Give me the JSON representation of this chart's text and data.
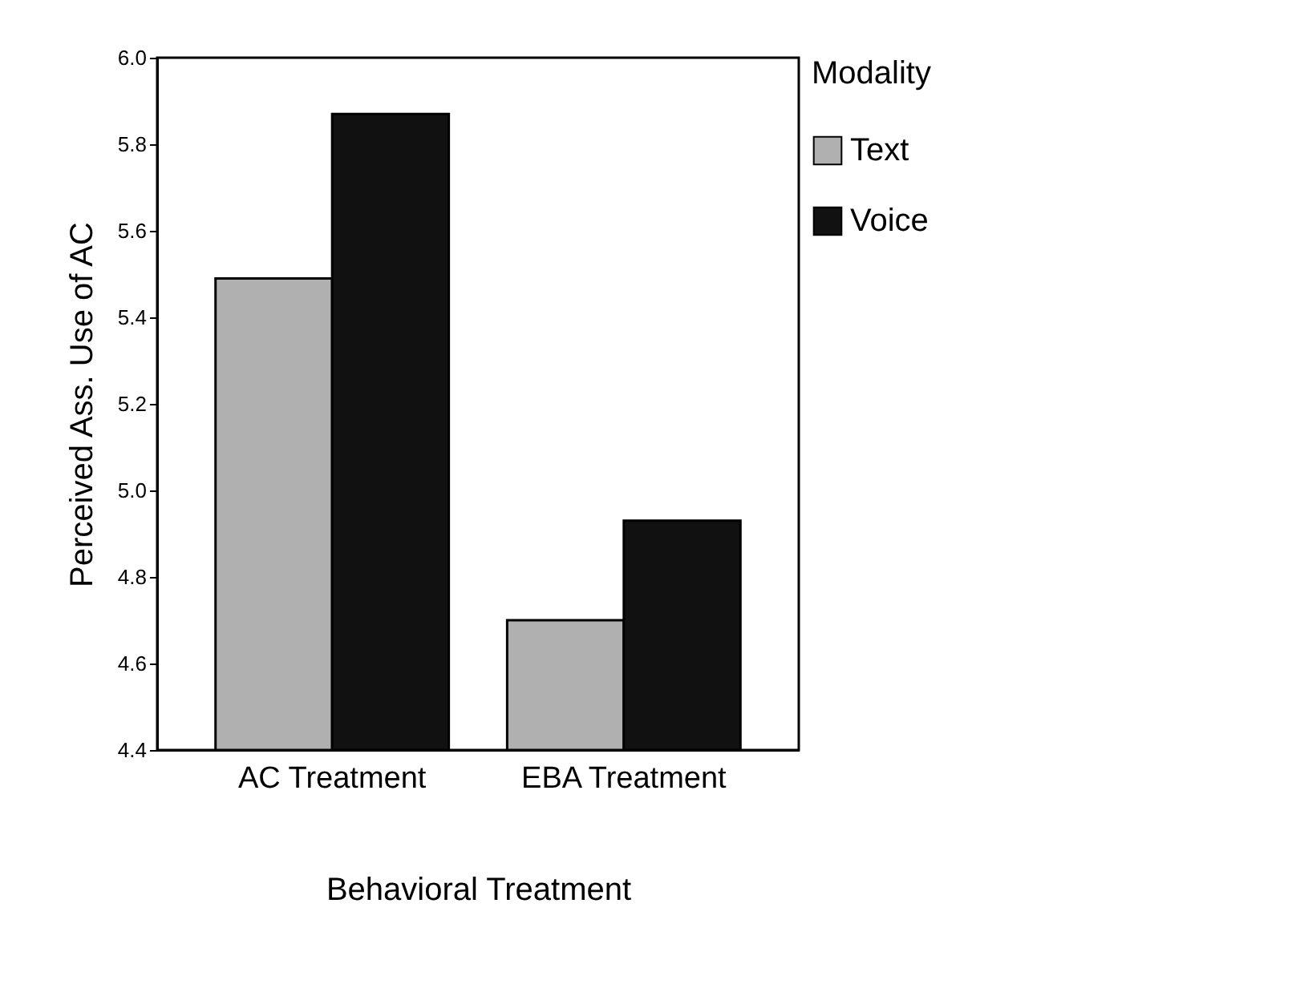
{
  "chart_data": {
    "type": "bar",
    "xlabel": "Behavioral Treatment",
    "ylabel": "Perceived Ass. Use of AC",
    "legend_title": "Modality",
    "categories": [
      "AC Treatment",
      "EBA Treatment"
    ],
    "series": [
      {
        "name": "Text",
        "color": "#b0b0b0",
        "values": [
          5.49,
          4.7
        ]
      },
      {
        "name": "Voice",
        "color": "#111111",
        "values": [
          5.87,
          4.93
        ]
      }
    ],
    "ylim": [
      4.4,
      6.0
    ],
    "yticks": [
      4.4,
      4.6,
      4.8,
      {
        "value": 5,
        "label": "5.0"
      },
      5.2,
      5.4,
      5.6,
      5.8,
      {
        "value": 6,
        "label": "6.0"
      }
    ],
    "grid": false,
    "legend": "right"
  }
}
